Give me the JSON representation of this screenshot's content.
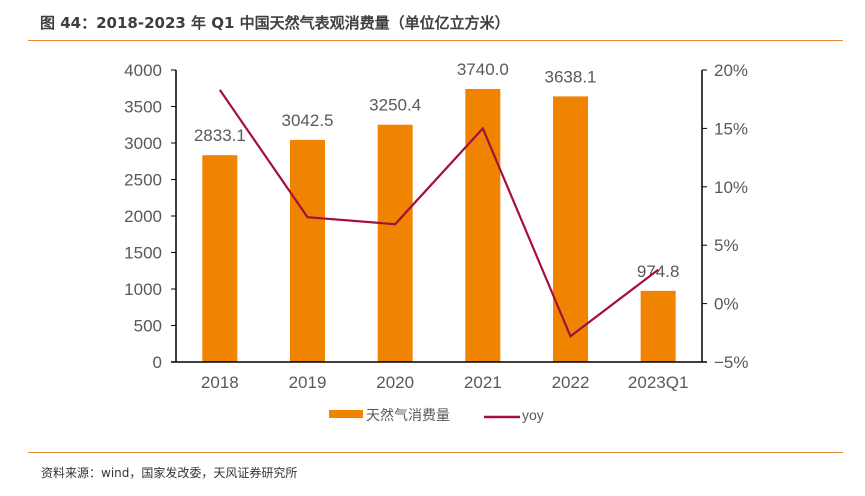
{
  "figure": {
    "title": "图 44：2018-2023 年 Q1 中国天然气表观消费量（单位亿立方米）",
    "source": "资料来源：wind，国家发改委，天风证券研究所"
  },
  "colors": {
    "bar": "#f08300",
    "line": "#a50f3d",
    "rule": "#e38a3a",
    "axis": "#000000",
    "text": "#595959"
  },
  "chart_data": {
    "type": "bar",
    "title": "2018-2023 年 Q1 中国天然气表观消费量（单位亿立方米）",
    "xlabel": "",
    "ylabel": "",
    "categories": [
      "2018",
      "2019",
      "2020",
      "2021",
      "2022",
      "2023Q1"
    ],
    "series": [
      {
        "name": "天然气消费量",
        "type": "bar",
        "axis": "left",
        "values": [
          2833.1,
          3042.5,
          3250.4,
          3740.0,
          3638.1,
          974.8
        ],
        "labels": [
          "2833.1",
          "3042.5",
          "3250.4",
          "3740.0",
          "3638.1",
          "974.8"
        ]
      },
      {
        "name": "yoy",
        "type": "line",
        "axis": "right",
        "values": [
          18.3,
          7.4,
          6.8,
          15.0,
          -2.8,
          2.9
        ]
      }
    ],
    "ylim": [
      0,
      4000
    ],
    "yticks": [
      0,
      500,
      1000,
      1500,
      2000,
      2500,
      3000,
      3500,
      4000
    ],
    "ytick_labels": [
      "0",
      "500",
      "1000",
      "1500",
      "2000",
      "2500",
      "3000",
      "3500",
      "4000"
    ],
    "y2lim": [
      -5,
      20
    ],
    "y2ticks": [
      -5,
      0,
      5,
      10,
      15,
      20
    ],
    "y2tick_labels": [
      "−5%",
      "0%",
      "5%",
      "10%",
      "15%",
      "20%"
    ],
    "grid": false,
    "legend": {
      "position": "bottom",
      "entries": [
        "天然气消费量",
        "yoy"
      ]
    }
  }
}
